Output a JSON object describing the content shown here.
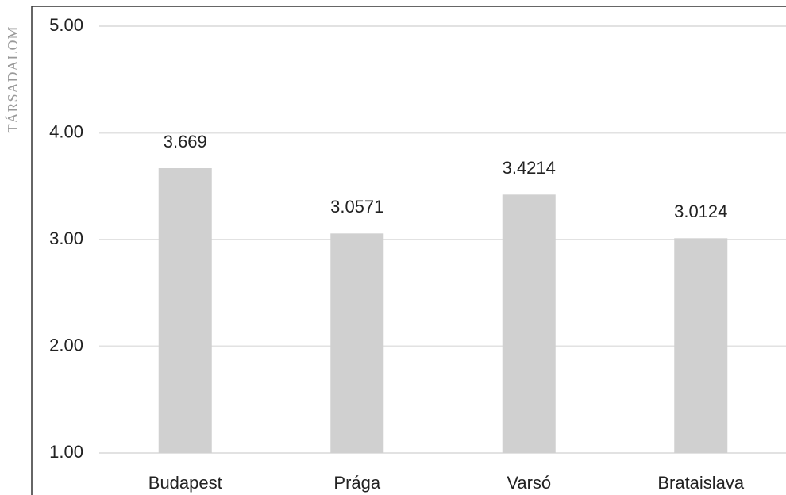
{
  "margin_text": "TÁRSADALOM",
  "chart_data": {
    "type": "bar",
    "categories": [
      "Budapest",
      "Prága",
      "Varsó",
      "Brataislava"
    ],
    "values": [
      3.669,
      3.0571,
      3.4214,
      3.0124
    ],
    "color": "#d0d0d0",
    "ylim": [
      1,
      5
    ],
    "yticks": [
      {
        "value": 1,
        "label": "1.00"
      },
      {
        "value": 2,
        "label": "2.00"
      },
      {
        "value": 3,
        "label": "3.00"
      },
      {
        "value": 4,
        "label": "4.00"
      },
      {
        "value": 5,
        "label": "5.00"
      }
    ],
    "grid": true
  }
}
